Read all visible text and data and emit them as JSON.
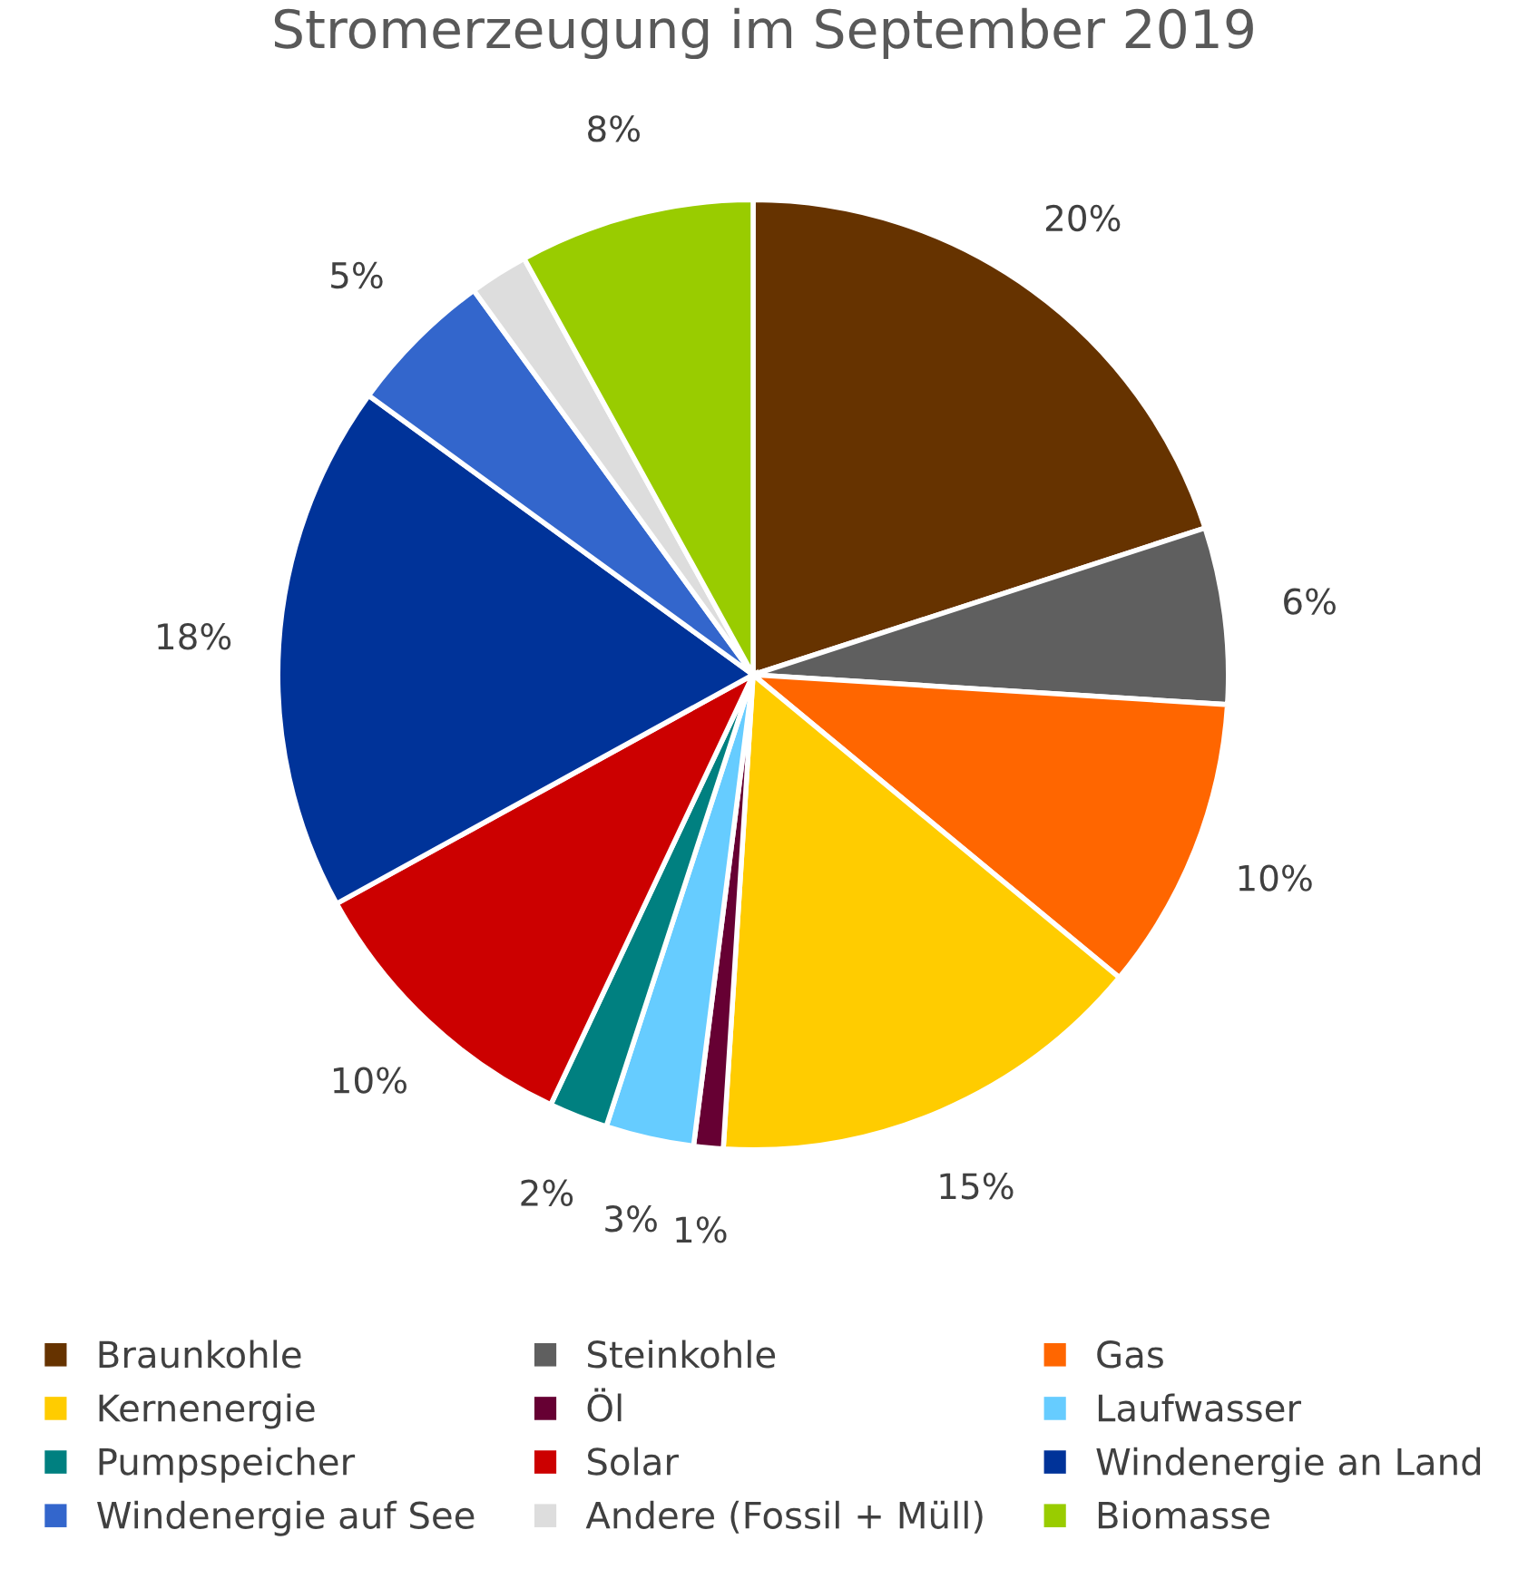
{
  "chart_data": {
    "type": "pie",
    "title": "Stromerzeugung im September 2019",
    "categories": [
      "Braunkohle",
      "Steinkohle",
      "Gas",
      "Kernenergie",
      "Öl",
      "Laufwasser",
      "Pumpspeicher",
      "Solar",
      "Windenergie an Land",
      "Windenergie auf See",
      "Andere (Fossil + Müll)",
      "Biomasse"
    ],
    "values": [
      20,
      6,
      10,
      15,
      1,
      3,
      2,
      10,
      18,
      5,
      2,
      8
    ],
    "value_labels": [
      "20%",
      "6%",
      "10%",
      "15%",
      "1%",
      "3%",
      "2%",
      "10%",
      "18%",
      "5%",
      null,
      "8%"
    ],
    "colors": [
      "#663300",
      "#5f5f5f",
      "#ff6600",
      "#ffcc00",
      "#660033",
      "#66ccff",
      "#008080",
      "#cc0000",
      "#003399",
      "#3366cc",
      "#dddddd",
      "#99cc00"
    ],
    "legend": "bottom"
  }
}
